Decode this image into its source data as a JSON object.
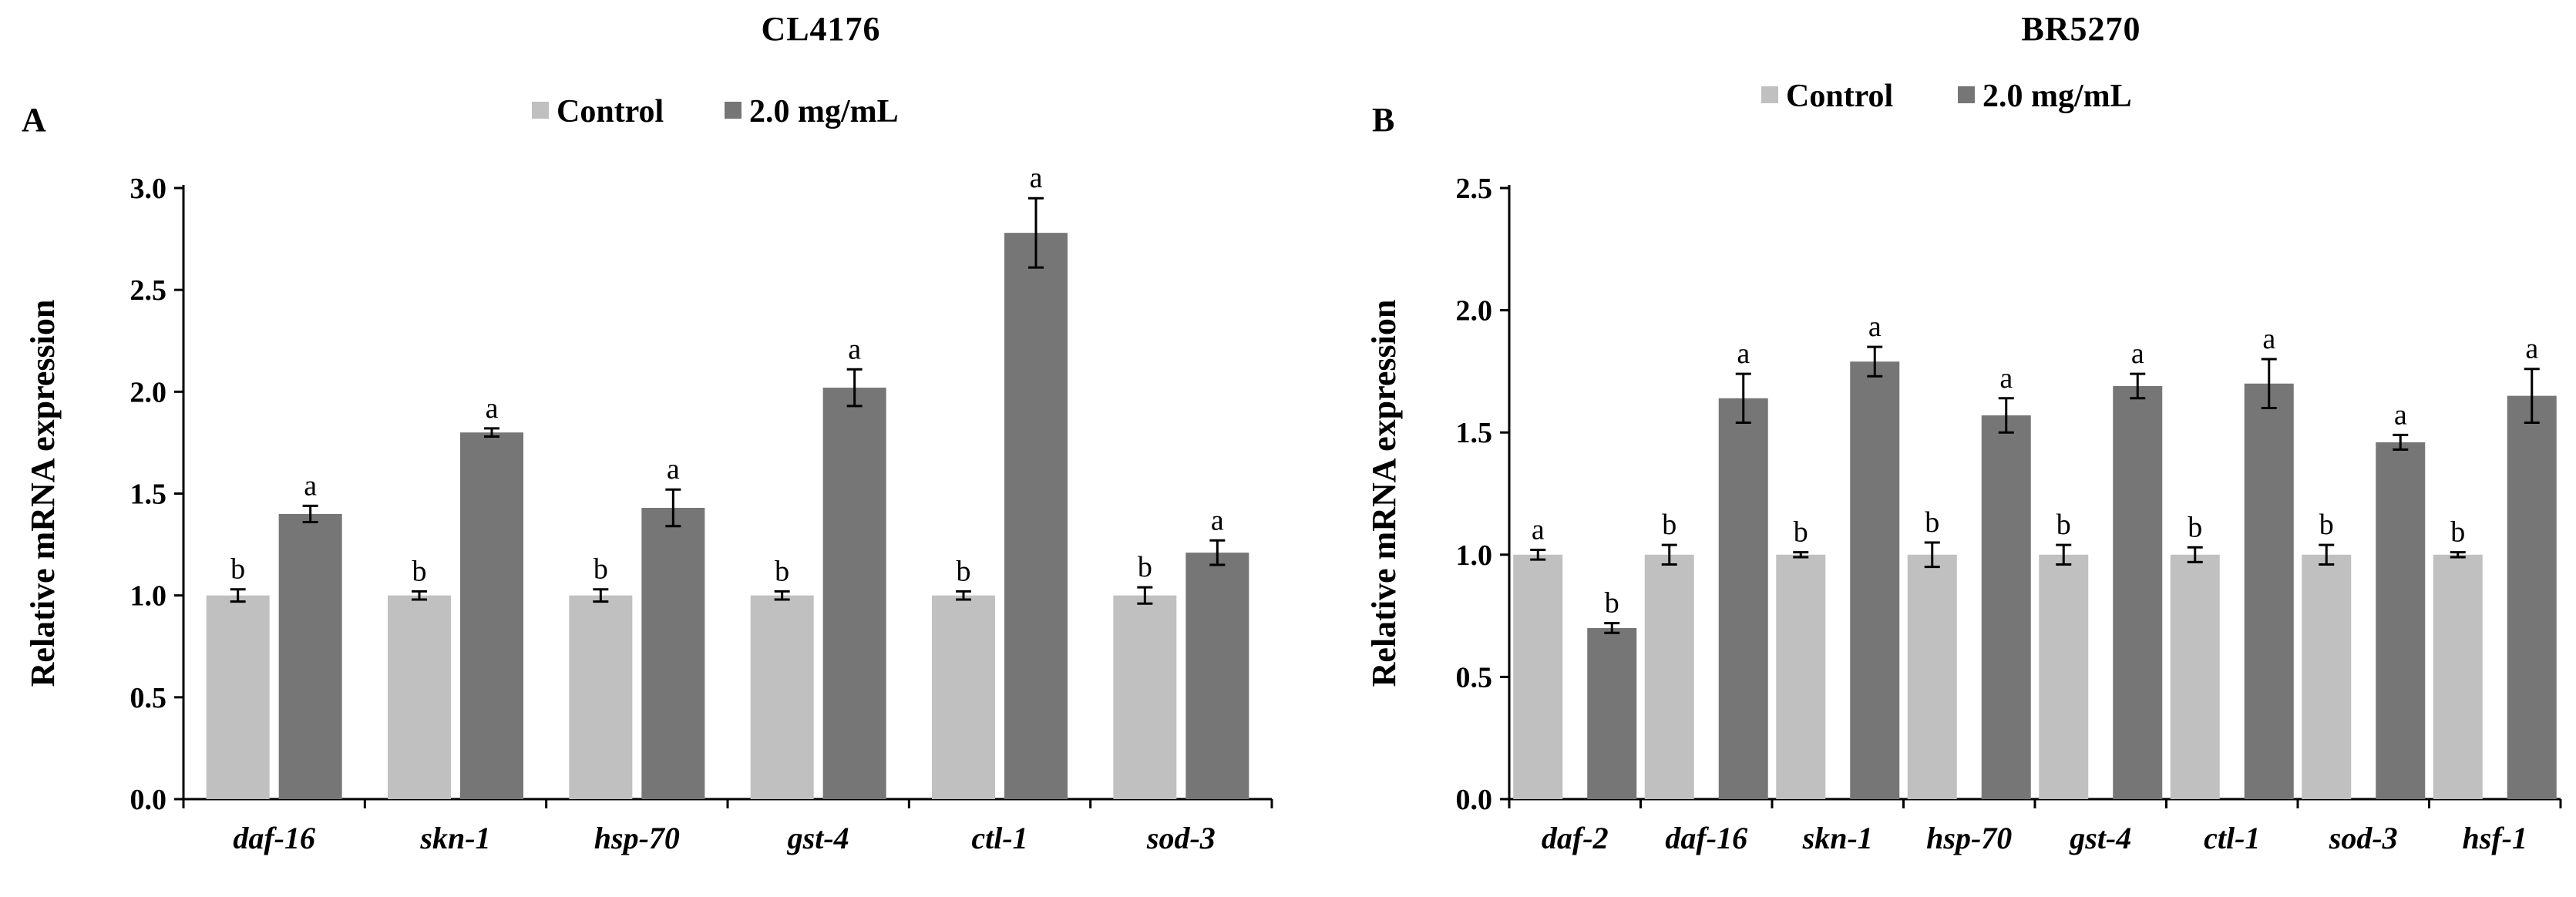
{
  "colors": {
    "control": "#c0c0c0",
    "treated": "#767676",
    "axis": "#000000"
  },
  "chart_data": [
    {
      "type": "bar",
      "title": "CL4176",
      "panel_label": "A",
      "ylabel": "Relative mRNA expression",
      "xlabel": "",
      "ylim": [
        0,
        3.0
      ],
      "yticks": [
        0.0,
        0.5,
        1.0,
        1.5,
        2.0,
        2.5,
        3.0
      ],
      "ytick_labels": [
        "0.0",
        "0.5",
        "1.0",
        "1.5",
        "2.0",
        "2.5",
        "3.0"
      ],
      "categories": [
        "daf-16",
        "skn-1",
        "hsp-70",
        "gst-4",
        "ctl-1",
        "sod-3"
      ],
      "legend": [
        "Control",
        "2.0 mg/mL"
      ],
      "legend_position": "top-center",
      "series": [
        {
          "name": "Control",
          "values": [
            1.0,
            1.0,
            1.0,
            1.0,
            1.0,
            1.0
          ],
          "errors": [
            0.03,
            0.02,
            0.03,
            0.02,
            0.02,
            0.04
          ],
          "labels": [
            "b",
            "b",
            "b",
            "b",
            "b",
            "b"
          ]
        },
        {
          "name": "2.0 mg/mL",
          "values": [
            1.4,
            1.8,
            1.43,
            2.02,
            2.78,
            1.21
          ],
          "errors": [
            0.04,
            0.02,
            0.09,
            0.09,
            0.17,
            0.06
          ],
          "labels": [
            "a",
            "a",
            "a",
            "a",
            "a",
            "a"
          ]
        }
      ]
    },
    {
      "type": "bar",
      "title": "BR5270",
      "panel_label": "B",
      "ylabel": "Relative mRNA expression",
      "xlabel": "",
      "ylim": [
        0,
        2.5
      ],
      "yticks": [
        0.0,
        0.5,
        1.0,
        1.5,
        2.0,
        2.5
      ],
      "ytick_labels": [
        "0.0",
        "0.5",
        "1.0",
        "1.5",
        "2.0",
        "2.5"
      ],
      "categories": [
        "daf-2",
        "daf-16",
        "skn-1",
        "hsp-70",
        "gst-4",
        "ctl-1",
        "sod-3",
        "hsf-1"
      ],
      "legend": [
        "Control",
        "2.0 mg/mL"
      ],
      "legend_position": "top-center",
      "series": [
        {
          "name": "Control",
          "values": [
            1.0,
            1.0,
            1.0,
            1.0,
            1.0,
            1.0,
            1.0,
            1.0
          ],
          "errors": [
            0.02,
            0.04,
            0.01,
            0.05,
            0.04,
            0.03,
            0.04,
            0.01
          ],
          "labels": [
            "a",
            "b",
            "b",
            "b",
            "b",
            "b",
            "b",
            "b"
          ]
        },
        {
          "name": "2.0 mg/mL",
          "values": [
            0.7,
            1.64,
            1.79,
            1.57,
            1.69,
            1.7,
            1.46,
            1.65
          ],
          "errors": [
            0.02,
            0.1,
            0.06,
            0.07,
            0.05,
            0.1,
            0.03,
            0.11
          ],
          "labels": [
            "b",
            "a",
            "a",
            "a",
            "a",
            "a",
            "a",
            "a"
          ]
        }
      ]
    }
  ]
}
